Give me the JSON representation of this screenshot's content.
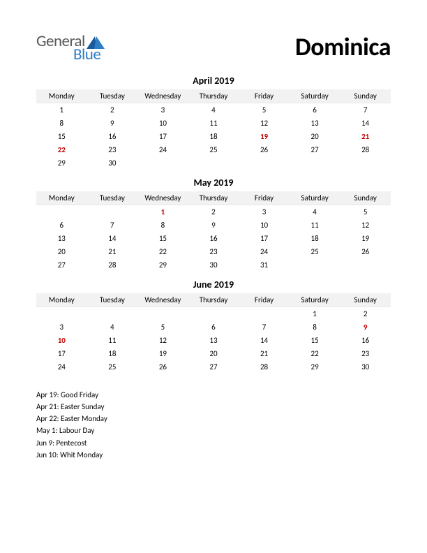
{
  "logo": {
    "line1": "General",
    "line2": "Blue"
  },
  "title": "Dominica",
  "weekdays": [
    "Monday",
    "Tuesday",
    "Wednesday",
    "Thursday",
    "Friday",
    "Saturday",
    "Sunday"
  ],
  "months": [
    {
      "name": "April 2019",
      "weeks": [
        [
          {
            "n": "1"
          },
          {
            "n": "2"
          },
          {
            "n": "3"
          },
          {
            "n": "4"
          },
          {
            "n": "5"
          },
          {
            "n": "6"
          },
          {
            "n": "7"
          }
        ],
        [
          {
            "n": "8"
          },
          {
            "n": "9"
          },
          {
            "n": "10"
          },
          {
            "n": "11"
          },
          {
            "n": "12"
          },
          {
            "n": "13"
          },
          {
            "n": "14"
          }
        ],
        [
          {
            "n": "15"
          },
          {
            "n": "16"
          },
          {
            "n": "17"
          },
          {
            "n": "18"
          },
          {
            "n": "19",
            "h": true
          },
          {
            "n": "20"
          },
          {
            "n": "21",
            "h": true
          }
        ],
        [
          {
            "n": "22",
            "h": true
          },
          {
            "n": "23"
          },
          {
            "n": "24"
          },
          {
            "n": "25"
          },
          {
            "n": "26"
          },
          {
            "n": "27"
          },
          {
            "n": "28"
          }
        ],
        [
          {
            "n": "29"
          },
          {
            "n": "30"
          },
          {
            "n": ""
          },
          {
            "n": ""
          },
          {
            "n": ""
          },
          {
            "n": ""
          },
          {
            "n": ""
          }
        ]
      ]
    },
    {
      "name": "May 2019",
      "weeks": [
        [
          {
            "n": ""
          },
          {
            "n": ""
          },
          {
            "n": "1",
            "h": true
          },
          {
            "n": "2"
          },
          {
            "n": "3"
          },
          {
            "n": "4"
          },
          {
            "n": "5"
          }
        ],
        [
          {
            "n": "6"
          },
          {
            "n": "7"
          },
          {
            "n": "8"
          },
          {
            "n": "9"
          },
          {
            "n": "10"
          },
          {
            "n": "11"
          },
          {
            "n": "12"
          }
        ],
        [
          {
            "n": "13"
          },
          {
            "n": "14"
          },
          {
            "n": "15"
          },
          {
            "n": "16"
          },
          {
            "n": "17"
          },
          {
            "n": "18"
          },
          {
            "n": "19"
          }
        ],
        [
          {
            "n": "20"
          },
          {
            "n": "21"
          },
          {
            "n": "22"
          },
          {
            "n": "23"
          },
          {
            "n": "24"
          },
          {
            "n": "25"
          },
          {
            "n": "26"
          }
        ],
        [
          {
            "n": "27"
          },
          {
            "n": "28"
          },
          {
            "n": "29"
          },
          {
            "n": "30"
          },
          {
            "n": "31"
          },
          {
            "n": ""
          },
          {
            "n": ""
          }
        ]
      ]
    },
    {
      "name": "June 2019",
      "weeks": [
        [
          {
            "n": ""
          },
          {
            "n": ""
          },
          {
            "n": ""
          },
          {
            "n": ""
          },
          {
            "n": ""
          },
          {
            "n": "1"
          },
          {
            "n": "2"
          }
        ],
        [
          {
            "n": "3"
          },
          {
            "n": "4"
          },
          {
            "n": "5"
          },
          {
            "n": "6"
          },
          {
            "n": "7"
          },
          {
            "n": "8"
          },
          {
            "n": "9",
            "h": true
          }
        ],
        [
          {
            "n": "10",
            "h": true
          },
          {
            "n": "11"
          },
          {
            "n": "12"
          },
          {
            "n": "13"
          },
          {
            "n": "14"
          },
          {
            "n": "15"
          },
          {
            "n": "16"
          }
        ],
        [
          {
            "n": "17"
          },
          {
            "n": "18"
          },
          {
            "n": "19"
          },
          {
            "n": "20"
          },
          {
            "n": "21"
          },
          {
            "n": "22"
          },
          {
            "n": "23"
          }
        ],
        [
          {
            "n": "24"
          },
          {
            "n": "25"
          },
          {
            "n": "26"
          },
          {
            "n": "27"
          },
          {
            "n": "28"
          },
          {
            "n": "29"
          },
          {
            "n": "30"
          }
        ]
      ]
    }
  ],
  "holidays": [
    "Apr 19: Good Friday",
    "Apr 21: Easter Sunday",
    "Apr 22: Easter Monday",
    "May 1: Labour Day",
    "Jun 9: Pentecost",
    "Jun 10: Whit Monday"
  ],
  "colors": {
    "holiday_text": "#c00000",
    "header_bg": "#f2f2f2",
    "logo_gray": "#595959",
    "logo_blue": "#2f7dc4",
    "logo_tri_dark": "#1a5a9e"
  }
}
